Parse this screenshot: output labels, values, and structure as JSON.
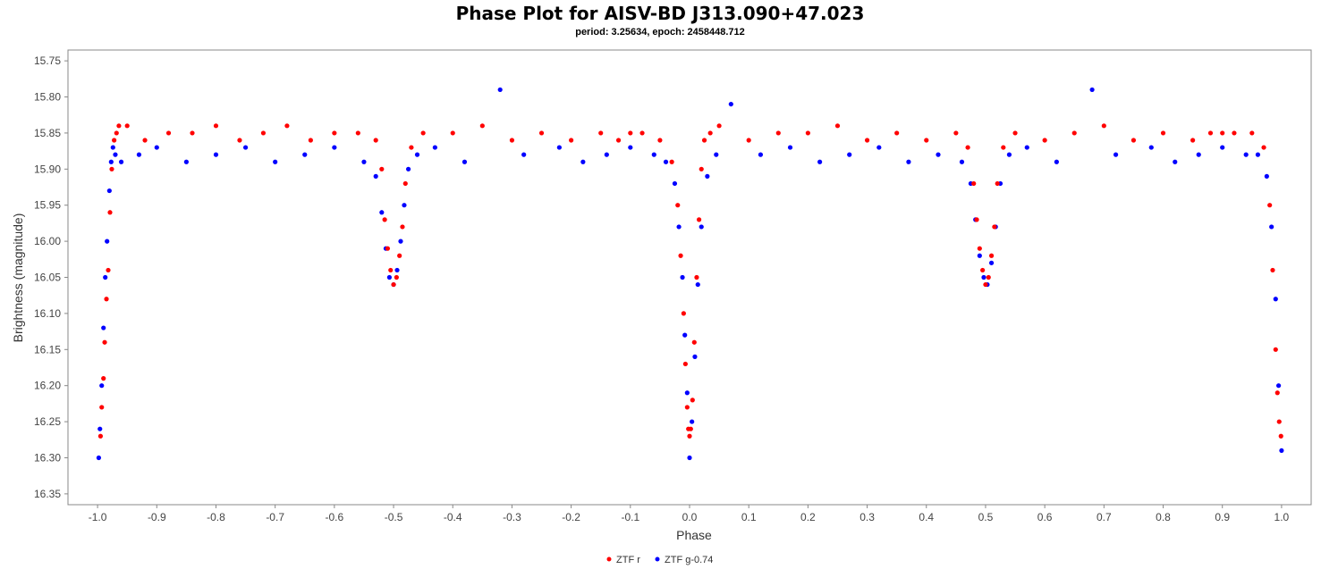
{
  "chart_data": {
    "type": "scatter",
    "title": "Phase Plot for AISV-BD J313.090+47.023",
    "subtitle": "period: 3.25634, epoch: 2458448.712",
    "xlabel": "Phase",
    "ylabel": "Brightness (magnitude)",
    "xlim": [
      -1.05,
      1.05
    ],
    "ylim": [
      15.735,
      16.365
    ],
    "y_inverted": true,
    "x_ticks": [
      -1.0,
      -0.9,
      -0.8,
      -0.7,
      -0.6,
      -0.5,
      -0.4,
      -0.3,
      -0.2,
      -0.1,
      0.0,
      0.1,
      0.2,
      0.3,
      0.4,
      0.5,
      0.6,
      0.7,
      0.8,
      0.9,
      1.0
    ],
    "x_tick_labels": [
      "-1.0",
      "-0.9",
      "-0.8",
      "-0.7",
      "-0.6",
      "-0.5",
      "-0.4",
      "-0.3",
      "-0.2",
      "-0.1",
      "0.0",
      "0.1",
      "0.2",
      "0.3",
      "0.4",
      "0.5",
      "0.6",
      "0.7",
      "0.8",
      "0.9",
      "1.0"
    ],
    "y_ticks": [
      15.75,
      15.8,
      15.85,
      15.9,
      15.95,
      16.0,
      16.05,
      16.1,
      16.15,
      16.2,
      16.25,
      16.3,
      16.35
    ],
    "y_tick_labels": [
      "15.75",
      "15.80",
      "15.85",
      "15.90",
      "15.95",
      "16.00",
      "16.05",
      "16.10",
      "16.15",
      "16.20",
      "16.25",
      "16.30",
      "16.35"
    ],
    "grid": false,
    "legend_position": "bottom-center",
    "series": [
      {
        "name": "ZTF r",
        "color": "#ff0000",
        "x": [
          -0.995,
          -0.993,
          -0.99,
          -0.988,
          -0.985,
          -0.982,
          -0.979,
          -0.976,
          -0.972,
          -0.968,
          -0.964,
          -0.95,
          -0.92,
          -0.88,
          -0.84,
          -0.8,
          -0.76,
          -0.72,
          -0.68,
          -0.64,
          -0.6,
          -0.56,
          -0.53,
          -0.52,
          -0.515,
          -0.51,
          -0.505,
          -0.5,
          -0.495,
          -0.49,
          -0.485,
          -0.48,
          -0.47,
          -0.45,
          -0.4,
          -0.35,
          -0.3,
          -0.25,
          -0.2,
          -0.15,
          -0.12,
          -0.1,
          -0.08,
          -0.05,
          -0.03,
          -0.02,
          -0.015,
          -0.01,
          -0.007,
          -0.004,
          -0.002,
          0.0,
          0.002,
          0.005,
          0.008,
          0.012,
          0.016,
          0.02,
          0.025,
          0.035,
          0.05,
          0.1,
          0.15,
          0.2,
          0.25,
          0.3,
          0.35,
          0.4,
          0.45,
          0.47,
          0.48,
          0.485,
          0.49,
          0.495,
          0.5,
          0.505,
          0.51,
          0.515,
          0.52,
          0.53,
          0.55,
          0.6,
          0.65,
          0.7,
          0.75,
          0.8,
          0.85,
          0.88,
          0.9,
          0.92,
          0.95,
          0.97,
          0.98,
          0.985,
          0.99,
          0.993,
          0.996,
          0.999
        ],
        "y": [
          16.27,
          16.23,
          16.19,
          16.14,
          16.08,
          16.04,
          15.96,
          15.9,
          15.86,
          15.85,
          15.84,
          15.84,
          15.86,
          15.85,
          15.85,
          15.84,
          15.86,
          15.85,
          15.84,
          15.86,
          15.85,
          15.85,
          15.86,
          15.9,
          15.97,
          16.01,
          16.04,
          16.06,
          16.05,
          16.02,
          15.98,
          15.92,
          15.87,
          15.85,
          15.85,
          15.84,
          15.86,
          15.85,
          15.86,
          15.85,
          15.86,
          15.85,
          15.85,
          15.86,
          15.89,
          15.95,
          16.02,
          16.1,
          16.17,
          16.23,
          16.26,
          16.27,
          16.26,
          16.22,
          16.14,
          16.05,
          15.97,
          15.9,
          15.86,
          15.85,
          15.84,
          15.86,
          15.85,
          15.85,
          15.84,
          15.86,
          15.85,
          15.86,
          15.85,
          15.87,
          15.92,
          15.97,
          16.01,
          16.04,
          16.06,
          16.05,
          16.02,
          15.98,
          15.92,
          15.87,
          15.85,
          15.86,
          15.85,
          15.84,
          15.86,
          15.85,
          15.86,
          15.85,
          15.85,
          15.85,
          15.85,
          15.87,
          15.95,
          16.04,
          16.15,
          16.21,
          16.25,
          16.27
        ]
      },
      {
        "name": "ZTF g-0.74",
        "color": "#0000ff",
        "x": [
          -0.998,
          -0.996,
          -0.993,
          -0.99,
          -0.987,
          -0.984,
          -0.98,
          -0.977,
          -0.974,
          -0.97,
          -0.96,
          -0.93,
          -0.9,
          -0.85,
          -0.8,
          -0.75,
          -0.7,
          -0.65,
          -0.6,
          -0.55,
          -0.53,
          -0.52,
          -0.513,
          -0.507,
          -0.5,
          -0.494,
          -0.488,
          -0.482,
          -0.475,
          -0.46,
          -0.43,
          -0.38,
          -0.32,
          -0.28,
          -0.22,
          -0.18,
          -0.14,
          -0.1,
          -0.06,
          -0.04,
          -0.025,
          -0.018,
          -0.012,
          -0.008,
          -0.004,
          0.0,
          0.004,
          0.009,
          0.014,
          0.02,
          0.03,
          0.045,
          0.07,
          0.12,
          0.17,
          0.22,
          0.27,
          0.32,
          0.37,
          0.42,
          0.46,
          0.475,
          0.483,
          0.49,
          0.497,
          0.503,
          0.51,
          0.517,
          0.525,
          0.54,
          0.57,
          0.62,
          0.68,
          0.72,
          0.78,
          0.82,
          0.86,
          0.9,
          0.94,
          0.96,
          0.975,
          0.983,
          0.99,
          0.995,
          1.0
        ],
        "y": [
          16.3,
          16.26,
          16.2,
          16.12,
          16.05,
          16.0,
          15.93,
          15.89,
          15.87,
          15.88,
          15.89,
          15.88,
          15.87,
          15.89,
          15.88,
          15.87,
          15.89,
          15.88,
          15.87,
          15.89,
          15.91,
          15.96,
          16.01,
          16.05,
          16.06,
          16.04,
          16.0,
          15.95,
          15.9,
          15.88,
          15.87,
          15.89,
          15.79,
          15.88,
          15.87,
          15.89,
          15.88,
          15.87,
          15.88,
          15.89,
          15.92,
          15.98,
          16.05,
          16.13,
          16.21,
          16.3,
          16.25,
          16.16,
          16.06,
          15.98,
          15.91,
          15.88,
          15.81,
          15.88,
          15.87,
          15.89,
          15.88,
          15.87,
          15.89,
          15.88,
          15.89,
          15.92,
          15.97,
          16.02,
          16.05,
          16.06,
          16.03,
          15.98,
          15.92,
          15.88,
          15.87,
          15.89,
          15.79,
          15.88,
          15.87,
          15.89,
          15.88,
          15.87,
          15.88,
          15.88,
          15.91,
          15.98,
          16.08,
          16.2,
          16.29
        ]
      }
    ]
  }
}
